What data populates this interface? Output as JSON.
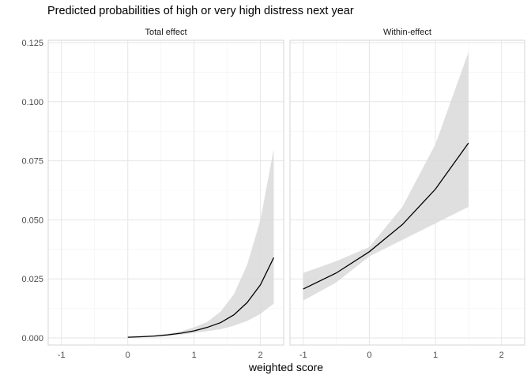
{
  "chart_data": {
    "type": "line",
    "title": "Predicted probabilities of high or very high distress next year",
    "xlabel": "weighted score",
    "ylabel": "",
    "xlim": [
      -1.2,
      2.35
    ],
    "ylim": [
      -0.003,
      0.126
    ],
    "x_ticks": [
      -1,
      0,
      1,
      2
    ],
    "x_tick_labels": [
      "-1",
      "0",
      "1",
      "2"
    ],
    "y_ticks": [
      0,
      0.025,
      0.05,
      0.075,
      0.1,
      0.125
    ],
    "y_tick_labels": [
      "0.000",
      "0.025",
      "0.050",
      "0.075",
      "0.100",
      "0.125"
    ],
    "grid": true,
    "line_color": "#000000",
    "band_color": "#d9d9d9",
    "panels": [
      {
        "strip": "Total effect",
        "x": [
          0,
          0.2,
          0.4,
          0.6,
          0.8,
          1.0,
          1.2,
          1.4,
          1.6,
          1.8,
          2.0,
          2.2
        ],
        "y": [
          0.0003,
          0.0005,
          0.0008,
          0.0013,
          0.002,
          0.003,
          0.0045,
          0.0065,
          0.0098,
          0.015,
          0.0225,
          0.034
        ],
        "lower": [
          0.0002,
          0.0003,
          0.0005,
          0.0009,
          0.0014,
          0.0021,
          0.0029,
          0.0037,
          0.0052,
          0.0072,
          0.0102,
          0.0145
        ],
        "upper": [
          0.0005,
          0.0008,
          0.0012,
          0.0018,
          0.0028,
          0.0045,
          0.0068,
          0.0112,
          0.0185,
          0.031,
          0.05,
          0.08
        ]
      },
      {
        "strip": "Within-effect",
        "x": [
          -1,
          -0.5,
          0,
          0.5,
          1,
          1.5
        ],
        "y": [
          0.0207,
          0.0275,
          0.0365,
          0.048,
          0.063,
          0.0825
        ],
        "lower": [
          0.0158,
          0.0235,
          0.0345,
          0.0415,
          0.0485,
          0.0555
        ],
        "upper": [
          0.0275,
          0.0325,
          0.0385,
          0.0555,
          0.082,
          0.121
        ]
      }
    ]
  }
}
